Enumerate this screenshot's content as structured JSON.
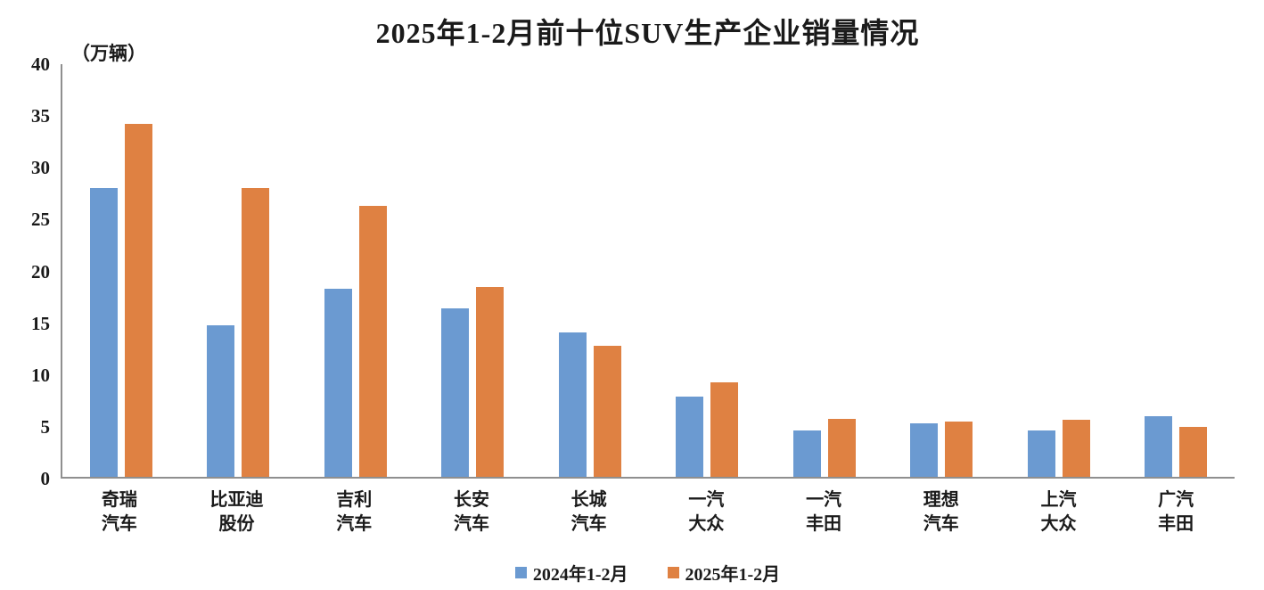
{
  "title": "2025年1-2月前十位SUV生产企业销量情况",
  "unit_label": "（万辆）",
  "chart_data": {
    "type": "bar",
    "title": "2025年1-2月前十位SUV生产企业销量情况",
    "ylabel": "（万辆）",
    "xlabel": "",
    "ylim": [
      0,
      40
    ],
    "yticks": [
      0,
      5,
      10,
      15,
      20,
      25,
      30,
      35,
      40
    ],
    "grid": false,
    "legend_position": "bottom",
    "categories": [
      "奇瑞汽车",
      "比亚迪股份",
      "吉利汽车",
      "长安汽车",
      "长城汽车",
      "一汽大众",
      "一汽丰田",
      "理想汽车",
      "上汽大众",
      "广汽丰田"
    ],
    "categories_wrapped": [
      [
        "奇瑞",
        "汽车"
      ],
      [
        "比亚迪",
        "股份"
      ],
      [
        "吉利",
        "汽车"
      ],
      [
        "长安",
        "汽车"
      ],
      [
        "长城",
        "汽车"
      ],
      [
        "一汽",
        "大众"
      ],
      [
        "一汽",
        "丰田"
      ],
      [
        "理想",
        "汽车"
      ],
      [
        "上汽",
        "大众"
      ],
      [
        "广汽",
        "丰田"
      ]
    ],
    "series": [
      {
        "name": "2024年1-2月",
        "color": "#6b9ad1",
        "values": [
          28.0,
          14.7,
          18.2,
          16.3,
          14.0,
          7.8,
          4.5,
          5.2,
          4.5,
          5.9
        ]
      },
      {
        "name": "2025年1-2月",
        "color": "#df8142",
        "values": [
          34.2,
          28.0,
          26.3,
          18.4,
          12.7,
          9.2,
          5.6,
          5.4,
          5.5,
          4.8
        ]
      }
    ]
  },
  "colors": {
    "axis": "#8f8f8f",
    "text": "#1a1a1a",
    "series_2024": "#6b9ad1",
    "series_2025": "#df8142"
  }
}
